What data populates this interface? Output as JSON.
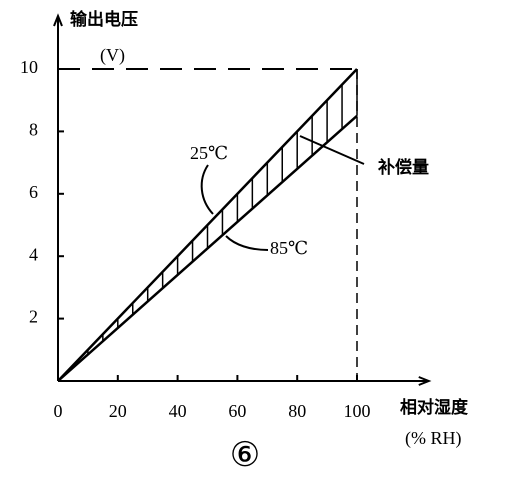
{
  "chart_data": {
    "type": "line",
    "y_label": "输出电压",
    "y_unit": "(V)",
    "x_label": "相对湿度",
    "x_unit": "(% RH)",
    "caption": "⑥",
    "annotation": "补偿量",
    "x": [
      0,
      100
    ],
    "series": [
      {
        "name": "25℃",
        "color": "#000000",
        "values": [
          0,
          10
        ]
      },
      {
        "name": "85℃",
        "color": "#000000",
        "values": [
          0,
          8.5
        ]
      }
    ],
    "xlim": [
      0,
      124
    ],
    "ylim": [
      0,
      11.7
    ],
    "xticks": [
      0,
      20,
      40,
      60,
      80,
      100
    ],
    "yticks": [
      2,
      4,
      6,
      8,
      10
    ]
  }
}
